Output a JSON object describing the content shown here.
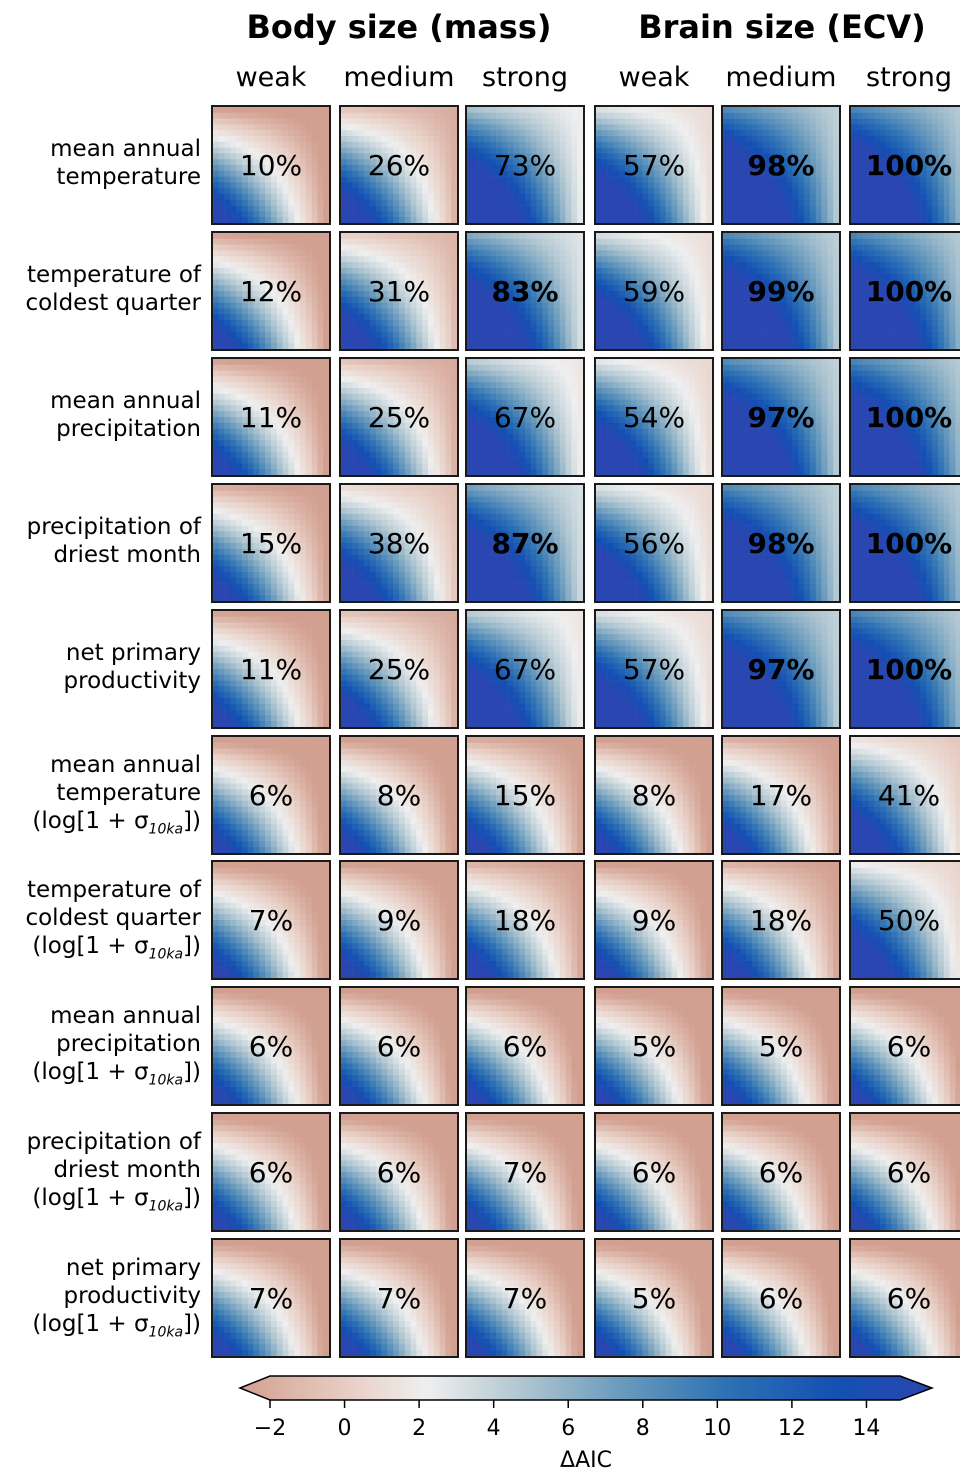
{
  "groups": [
    {
      "title": "Body size (mass)",
      "columns": [
        "weak",
        "medium",
        "strong"
      ]
    },
    {
      "title": "Brain size (ECV)",
      "columns": [
        "weak",
        "medium",
        "strong"
      ]
    }
  ],
  "rows": [
    {
      "lines": [
        "mean annual",
        "temperature"
      ],
      "log": false
    },
    {
      "lines": [
        "temperature of",
        "coldest quarter"
      ],
      "log": false
    },
    {
      "lines": [
        "mean annual",
        "precipitation"
      ],
      "log": false
    },
    {
      "lines": [
        "precipitation of",
        "driest month"
      ],
      "log": false
    },
    {
      "lines": [
        "net primary",
        "productivity"
      ],
      "log": false
    },
    {
      "lines": [
        "mean annual",
        "temperature"
      ],
      "log": true
    },
    {
      "lines": [
        "temperature of",
        "coldest quarter"
      ],
      "log": true
    },
    {
      "lines": [
        "mean annual",
        "precipitation"
      ],
      "log": true
    },
    {
      "lines": [
        "precipitation of",
        "driest month"
      ],
      "log": true
    },
    {
      "lines": [
        "net primary",
        "productivity"
      ],
      "log": true
    }
  ],
  "log_label": {
    "prefix": "(log[1 + σ",
    "subscript": "10ka",
    "suffix": "])"
  },
  "chart_data": {
    "type": "heatmap",
    "cell_values": [
      [
        "10%",
        "26%",
        "73%",
        "57%",
        "98%",
        "100%"
      ],
      [
        "12%",
        "31%",
        "83%",
        "59%",
        "99%",
        "100%"
      ],
      [
        "11%",
        "25%",
        "67%",
        "54%",
        "97%",
        "100%"
      ],
      [
        "15%",
        "38%",
        "87%",
        "56%",
        "98%",
        "100%"
      ],
      [
        "11%",
        "25%",
        "67%",
        "57%",
        "97%",
        "100%"
      ],
      [
        "6%",
        "8%",
        "15%",
        "8%",
        "17%",
        "41%"
      ],
      [
        "7%",
        "9%",
        "18%",
        "9%",
        "18%",
        "50%"
      ],
      [
        "6%",
        "6%",
        "6%",
        "5%",
        "5%",
        "6%"
      ],
      [
        "6%",
        "6%",
        "7%",
        "6%",
        "6%",
        "6%"
      ],
      [
        "7%",
        "7%",
        "7%",
        "5%",
        "6%",
        "6%"
      ]
    ],
    "percent_values": [
      [
        10,
        26,
        73,
        57,
        98,
        100
      ],
      [
        12,
        31,
        83,
        59,
        99,
        100
      ],
      [
        11,
        25,
        67,
        54,
        97,
        100
      ],
      [
        15,
        38,
        87,
        56,
        98,
        100
      ],
      [
        11,
        25,
        67,
        57,
        97,
        100
      ],
      [
        6,
        8,
        15,
        8,
        17,
        41
      ],
      [
        7,
        9,
        18,
        9,
        18,
        50
      ],
      [
        6,
        6,
        6,
        5,
        5,
        6
      ],
      [
        6,
        6,
        7,
        6,
        6,
        6
      ],
      [
        7,
        7,
        7,
        5,
        6,
        6
      ]
    ],
    "bold": [
      [
        false,
        false,
        false,
        false,
        true,
        true
      ],
      [
        false,
        false,
        true,
        false,
        true,
        true
      ],
      [
        false,
        false,
        false,
        false,
        true,
        true
      ],
      [
        false,
        false,
        true,
        false,
        true,
        true
      ],
      [
        false,
        false,
        false,
        false,
        true,
        true
      ],
      [
        false,
        false,
        false,
        false,
        false,
        false
      ],
      [
        false,
        false,
        false,
        false,
        false,
        false
      ],
      [
        false,
        false,
        false,
        false,
        false,
        false
      ],
      [
        false,
        false,
        false,
        false,
        false,
        false
      ],
      [
        false,
        false,
        false,
        false,
        false,
        false
      ]
    ],
    "colorbar": {
      "label": "ΔAIC",
      "ticks": [
        "−2",
        "0",
        "2",
        "4",
        "6",
        "8",
        "10",
        "12",
        "14"
      ],
      "tick_values": [
        -2,
        0,
        2,
        4,
        6,
        8,
        10,
        12,
        14
      ],
      "range": [
        -2.8,
        15.2
      ],
      "extend": "both",
      "colormap": [
        "#d2a091",
        "#e8cfc5",
        "#efefef",
        "#b3c8d2",
        "#6a9bbd",
        "#2f72b4",
        "#1450b3",
        "#2a46b0"
      ]
    }
  }
}
